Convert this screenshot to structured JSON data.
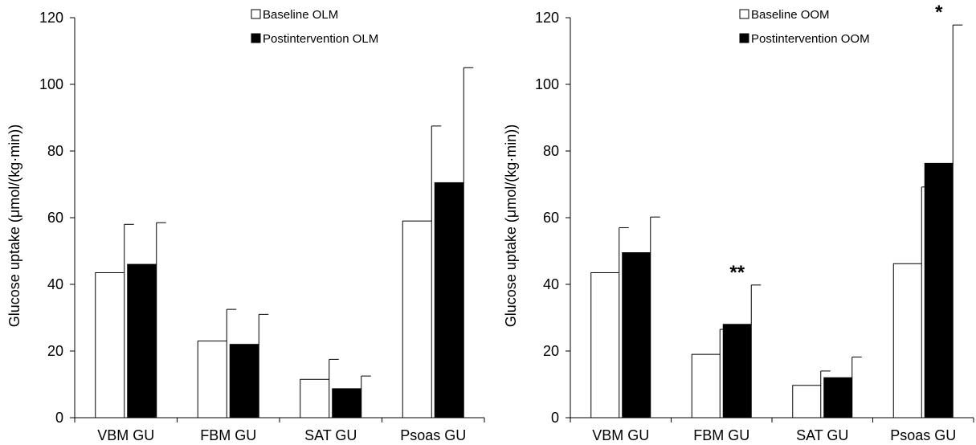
{
  "chart_data": [
    {
      "type": "bar",
      "categories": [
        "VBM GU",
        "FBM GU",
        "SAT GU",
        "Psoas GU"
      ],
      "series": [
        {
          "name": "Baseline OLM",
          "values": [
            43.5,
            23,
            11.5,
            59
          ],
          "errors": [
            14.5,
            9.5,
            6,
            28.5
          ],
          "fill": "#ffffff"
        },
        {
          "name": "Postintervention OLM",
          "values": [
            46,
            22,
            8.7,
            70.5
          ],
          "errors": [
            12.5,
            9,
            3.8,
            34.5
          ],
          "fill": "#000000"
        }
      ],
      "ylabel": "Glucose uptake (μmol/(kg·min))",
      "ylim": [
        0,
        120
      ],
      "yticks": [
        0,
        20,
        40,
        60,
        80,
        100,
        120
      ],
      "legend": "top-center",
      "annotations": []
    },
    {
      "type": "bar",
      "categories": [
        "VBM GU",
        "FBM GU",
        "SAT GU",
        "Psoas GU"
      ],
      "series": [
        {
          "name": "Baseline OOM",
          "values": [
            43.5,
            19,
            9.7,
            46.2
          ],
          "errors": [
            13.5,
            7.5,
            4.3,
            23
          ],
          "fill": "#ffffff"
        },
        {
          "name": "Postintervention OOM",
          "values": [
            49.5,
            28,
            12,
            76.3
          ],
          "errors": [
            10.7,
            11.8,
            6.2,
            41.5
          ],
          "fill": "#000000"
        }
      ],
      "ylabel": "Glucose uptake (μmol/(kg·min))",
      "ylim": [
        0,
        120
      ],
      "yticks": [
        0,
        20,
        40,
        60,
        80,
        100,
        120
      ],
      "legend": "top-center",
      "annotations": [
        {
          "category": "FBM GU",
          "series": 1,
          "text": "**"
        },
        {
          "category": "Psoas GU",
          "series": 1,
          "text": "*"
        }
      ]
    }
  ]
}
